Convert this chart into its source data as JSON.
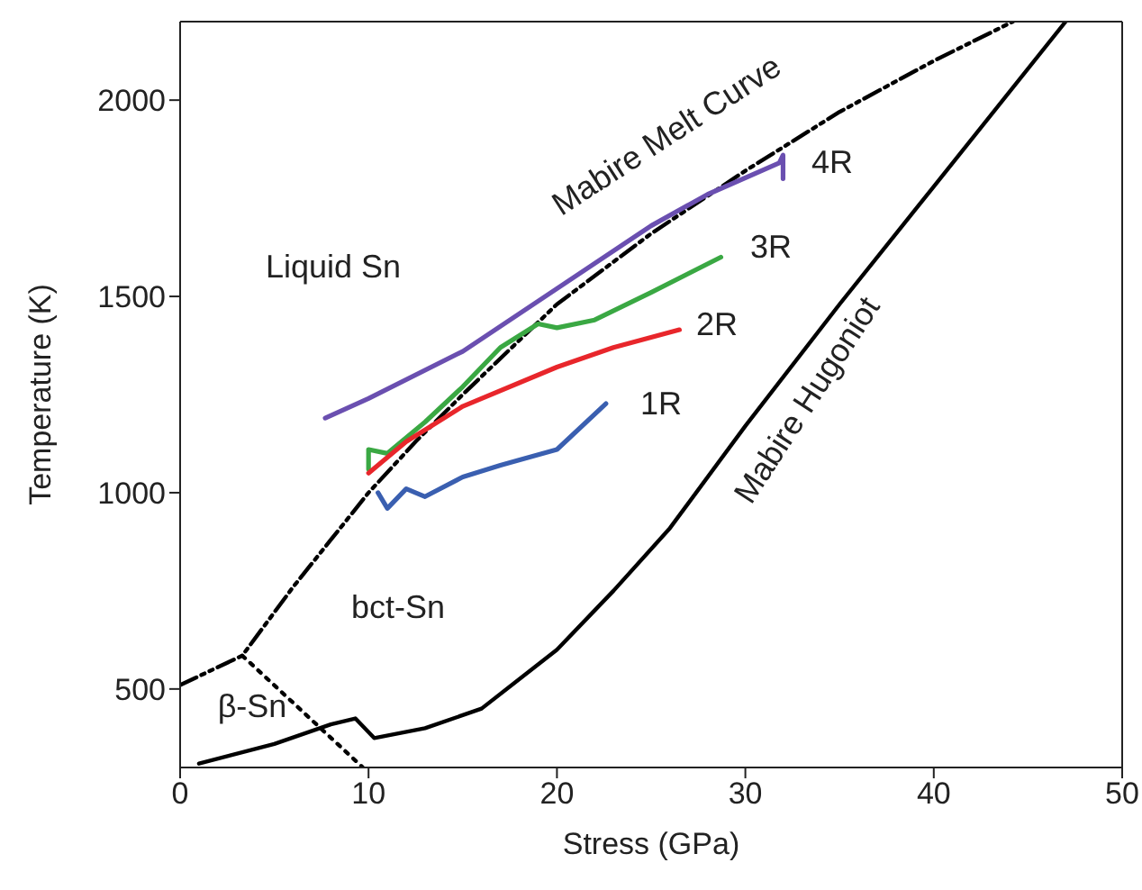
{
  "chart_data": {
    "type": "line",
    "xlabel": "Stress (GPa)",
    "ylabel": "Temperature (K)",
    "xlim": [
      0,
      50
    ],
    "xticks": [
      0,
      10,
      20,
      30,
      40,
      50
    ],
    "ylim": [
      300,
      2200
    ],
    "yticks": [
      500,
      1000,
      1500,
      2000
    ],
    "marker": "none",
    "series": [
      {
        "color": "#000000",
        "line_style": "dashdotdot",
        "x": [
          0,
          3.3,
          6,
          8,
          10,
          12.5,
          15,
          20,
          25,
          30,
          35,
          40,
          44.2
        ],
        "values": [
          510,
          585,
          760,
          880,
          1000,
          1130,
          1250,
          1480,
          1660,
          1820,
          1970,
          2100,
          2200
        ]
      },
      {
        "color": "#000000",
        "line_style": "dotted",
        "x": [
          3.3,
          9.7
        ],
        "values": [
          585,
          300
        ]
      },
      {
        "color": "#000000",
        "line_style": "solid",
        "x": [
          1,
          5,
          8,
          9.3,
          10.3,
          13,
          16,
          20,
          23,
          26,
          30,
          35,
          40,
          47
        ],
        "values": [
          310,
          360,
          410,
          425,
          375,
          400,
          450,
          600,
          750,
          910,
          1170,
          1480,
          1780,
          2200
        ]
      },
      {
        "color": "#6a4fb0",
        "line_style": "solid",
        "x": [
          7.7,
          10,
          15,
          20,
          25,
          28,
          31.8,
          32,
          32
        ],
        "values": [
          1190,
          1240,
          1360,
          1520,
          1680,
          1760,
          1840,
          1860,
          1800
        ]
      },
      {
        "color": "#3aa843",
        "line_style": "solid",
        "x": [
          10,
          10,
          11,
          13,
          15,
          17,
          19,
          20,
          22,
          25,
          28.7
        ],
        "values": [
          1060,
          1110,
          1100,
          1180,
          1270,
          1370,
          1430,
          1420,
          1440,
          1510,
          1600
        ]
      },
      {
        "color": "#e8262b",
        "line_style": "solid",
        "x": [
          10,
          12,
          15,
          20,
          23,
          26.5
        ],
        "values": [
          1050,
          1130,
          1220,
          1320,
          1370,
          1415
        ]
      },
      {
        "color": "#3a5fb0",
        "line_style": "solid",
        "x": [
          10.5,
          11,
          12,
          13,
          15,
          17,
          20,
          22.6
        ],
        "values": [
          1000,
          960,
          1010,
          990,
          1040,
          1070,
          1110,
          1227
        ]
      }
    ],
    "annotations": [
      "Liquid Sn",
      "bct-Sn",
      "β-Sn",
      "Mabire Melt Curve",
      "Mabire Hugoniot",
      "4R",
      "3R",
      "2R",
      "1R"
    ]
  }
}
